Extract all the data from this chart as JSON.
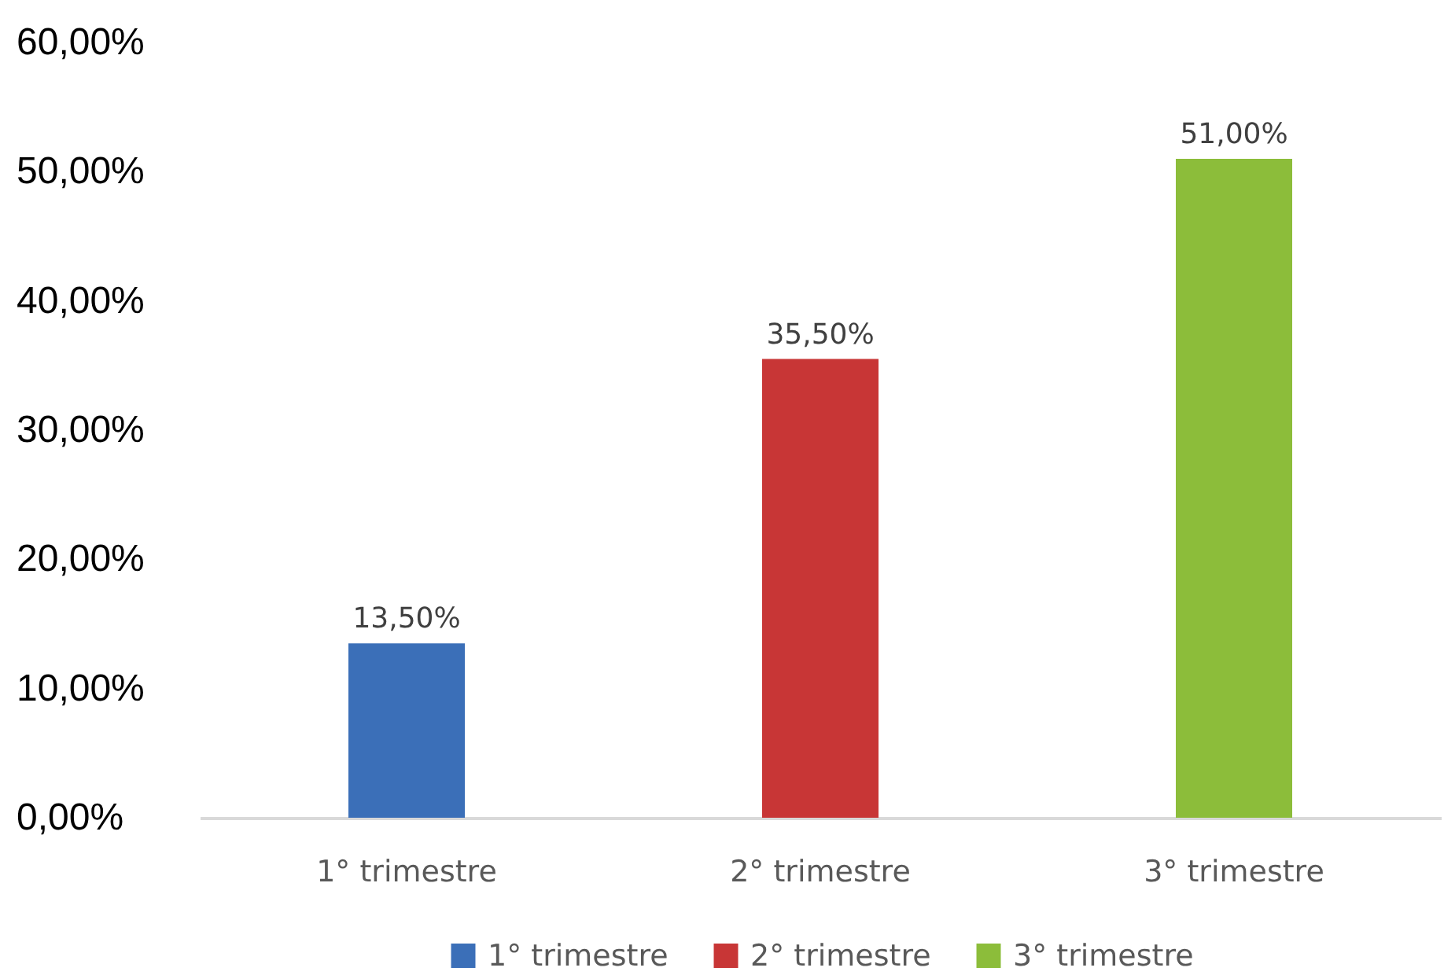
{
  "chart_data": {
    "type": "bar",
    "categories": [
      "1° trimestre",
      "2° trimestre",
      "3° trimestre"
    ],
    "series": [
      {
        "name": "1° trimestre",
        "color": "#3b6fb8",
        "values": [
          13.5,
          null,
          null
        ],
        "value_labels": [
          "13,50%",
          null,
          null
        ]
      },
      {
        "name": "2° trimestre",
        "color": "#c83636",
        "values": [
          null,
          35.5,
          null
        ],
        "value_labels": [
          null,
          "35,50%",
          null
        ]
      },
      {
        "name": "3° trimestre",
        "color": "#8cbd3a",
        "values": [
          null,
          null,
          51
        ],
        "value_labels": [
          null,
          null,
          "51,00%"
        ]
      }
    ],
    "ylim": [
      0,
      60
    ],
    "yticks": [
      {
        "value": 0,
        "label": "0,00%"
      },
      {
        "value": 10,
        "label": "10,00%"
      },
      {
        "value": 20,
        "label": "20,00%"
      },
      {
        "value": 30,
        "label": "30,00%"
      },
      {
        "value": 40,
        "label": "40,00%"
      },
      {
        "value": 50,
        "label": "50,00%"
      },
      {
        "value": 60,
        "label": "60,00%"
      }
    ],
    "legend": "bottom"
  }
}
